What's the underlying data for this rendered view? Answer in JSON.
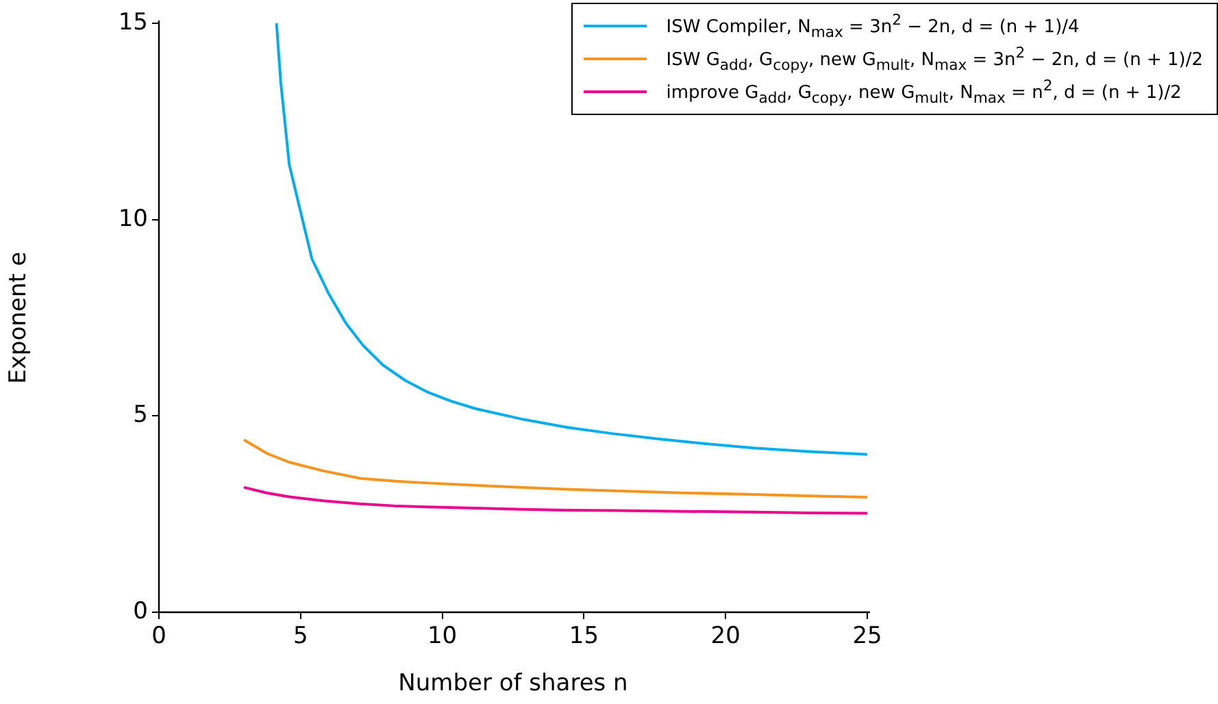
{
  "chart_data": {
    "type": "line",
    "xlabel": "Number of shares n",
    "ylabel": "Exponent e",
    "xlim": [
      0,
      25
    ],
    "ylim": [
      0,
      15
    ],
    "xticks": [
      0,
      5,
      10,
      15,
      20,
      25
    ],
    "yticks": [
      0,
      5,
      10,
      15
    ],
    "grid": false,
    "legend": "top right",
    "marker": "none",
    "line_style": "solid",
    "series": [
      {
        "name": "ISW Compiler,  N$_{max}$ = 3n$^{2}$ − 2n,  d = (n + 1)/4",
        "color": "#00aeef",
        "x": [
          4.15,
          4.3,
          4.6,
          5,
          5.4,
          6,
          6.6,
          7.2,
          7.9,
          8.7,
          9.5,
          10.3,
          11.2,
          12.8,
          14.4,
          16,
          17.7,
          19.3,
          21,
          23,
          25
        ],
        "values": [
          15,
          13.5,
          11.4,
          10.2,
          9.0,
          8.1,
          7.36,
          6.8,
          6.3,
          5.9,
          5.6,
          5.38,
          5.18,
          4.92,
          4.71,
          4.55,
          4.41,
          4.29,
          4.18,
          4.09,
          4.02
        ]
      },
      {
        "name": "ISW G$_{add}$, G$_{copy}$, new G$_{mult}$,  N$_{max}$ = 3n$^{2}$ − 2n,  d = (n + 1)/2",
        "color": "#f7941d",
        "x": [
          3,
          3.8,
          4.6,
          5.8,
          7.1,
          8.3,
          9.5,
          11.2,
          12.8,
          14.4,
          16.1,
          18.5,
          21,
          23,
          25
        ],
        "values": [
          4.39,
          4.05,
          3.82,
          3.6,
          3.41,
          3.34,
          3.29,
          3.23,
          3.18,
          3.13,
          3.09,
          3.04,
          3.0,
          2.96,
          2.93
        ]
      },
      {
        "name": "improve G$_{add}$, G$_{copy}$, new G$_{mult}$,  N$_{max}$ = n$^{2}$,  d = (n + 1)/2",
        "color": "#ec008c",
        "x": [
          3,
          3.8,
          4.6,
          5.8,
          7.1,
          8.3,
          9.5,
          11.2,
          12.8,
          14.4,
          16.1,
          18.5,
          21,
          23,
          25
        ],
        "values": [
          3.18,
          3.04,
          2.94,
          2.84,
          2.76,
          2.71,
          2.68,
          2.65,
          2.62,
          2.6,
          2.59,
          2.57,
          2.55,
          2.53,
          2.52
        ]
      }
    ]
  }
}
